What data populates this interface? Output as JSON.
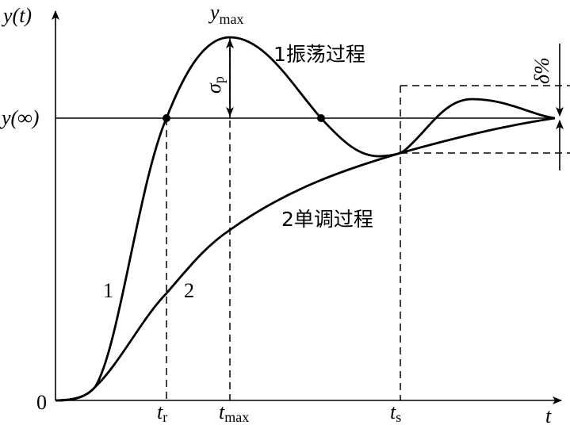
{
  "labels": {
    "y_axis": "y(t)",
    "y_inf": "y(∞)",
    "origin": "0",
    "x_axis": "t",
    "t_r": {
      "base": "t",
      "sub": "r"
    },
    "t_max": {
      "base": "t",
      "sub": "max"
    },
    "t_s": {
      "base": "t",
      "sub": "s"
    },
    "y_max": {
      "base": "y",
      "sub": "max"
    },
    "sigma_p": {
      "base": "σ",
      "sub": "p"
    },
    "delta": "δ%"
  },
  "curves": [
    {
      "number": "1",
      "name": "1振荡过程"
    },
    {
      "number": "2",
      "name": "2单调过程"
    }
  ]
}
